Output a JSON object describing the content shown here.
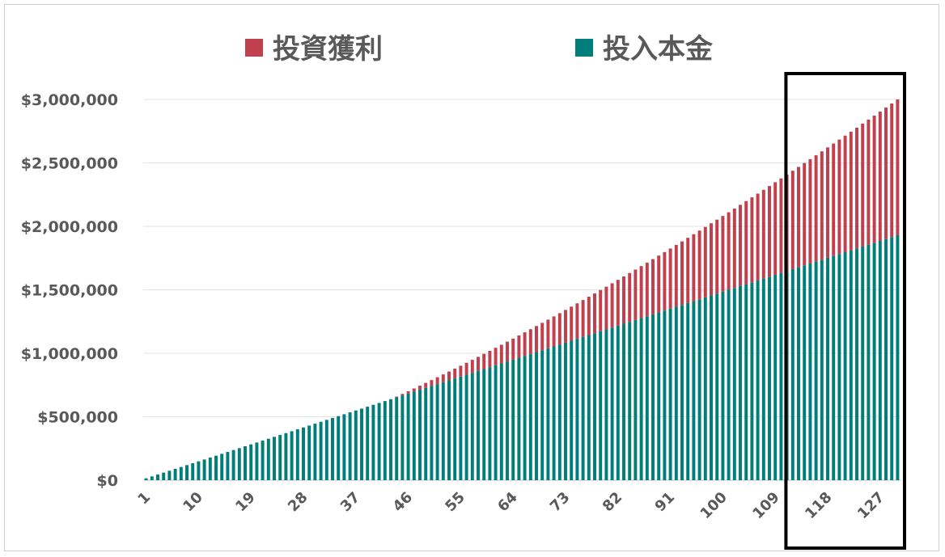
{
  "chart_data": {
    "type": "bar",
    "stacked": true,
    "x": [
      1,
      10,
      19,
      28,
      37,
      46,
      55,
      64,
      73,
      82,
      91,
      100,
      109,
      118,
      127
    ],
    "x_range": [
      1,
      130
    ],
    "series": [
      {
        "name": "投資獲利",
        "color": "#c0404e",
        "growth_total": [
          0,
          3000000
        ],
        "highlight_start_total": 2480000
      },
      {
        "name": "投入本金",
        "color": "#007f7a",
        "principal_range": [
          15000,
          1930000
        ]
      }
    ],
    "series_values_note": "",
    "ytick_labels": [
      "$0",
      "$500,000",
      "$1,000,000",
      "$1,500,000",
      "$2,000,000",
      "$2,500,000",
      "$3,000,000"
    ],
    "ylim": [
      0,
      3000000
    ],
    "legend_position": "top",
    "grid": true,
    "title": "",
    "xlabel": "",
    "ylabel": "",
    "highlight": {
      "from": 113,
      "to": 130,
      "style": "black box"
    }
  }
}
